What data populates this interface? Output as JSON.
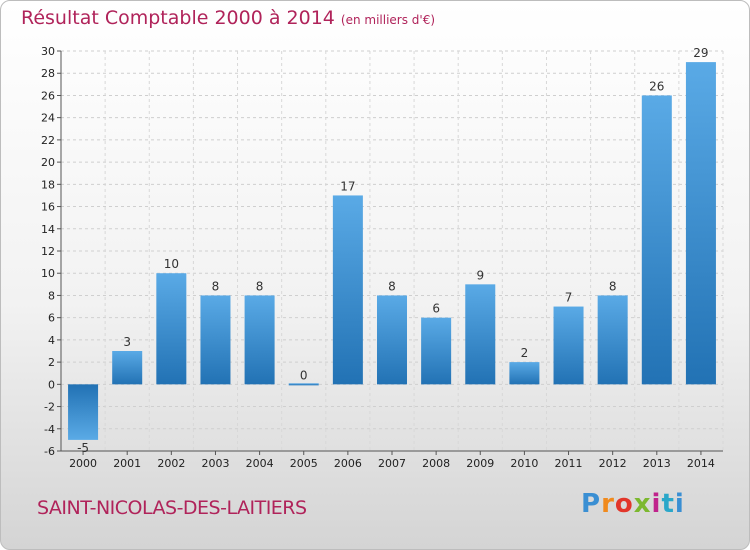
{
  "title": "Résultat Comptable 2000 à 2014",
  "subtitle": "(en milliers d'€)",
  "town": "SAINT-NICOLAS-DES-LAITIERS",
  "logo": {
    "letters": [
      "P",
      "r",
      "o",
      "x",
      "i",
      "t",
      "i"
    ],
    "text": "Proxiti"
  },
  "colors": {
    "title": "#b0235a",
    "bar_light": "#5aaae6",
    "bar_dark": "#2272b4"
  },
  "chart_data": {
    "type": "bar",
    "title": "Résultat Comptable 2000 à 2014",
    "subtitle": "(en milliers d'€)",
    "categories": [
      "2000",
      "2001",
      "2002",
      "2003",
      "2004",
      "2005",
      "2006",
      "2007",
      "2008",
      "2009",
      "2010",
      "2011",
      "2012",
      "2013",
      "2014"
    ],
    "values": [
      -5,
      3,
      10,
      8,
      8,
      0,
      17,
      8,
      6,
      9,
      2,
      7,
      8,
      26,
      29
    ],
    "ylim": [
      -6,
      30
    ],
    "yticks": [
      -6,
      -4,
      -2,
      0,
      2,
      4,
      6,
      8,
      10,
      12,
      14,
      16,
      18,
      20,
      22,
      24,
      26,
      28,
      30
    ],
    "grid": true,
    "legend": "none"
  }
}
